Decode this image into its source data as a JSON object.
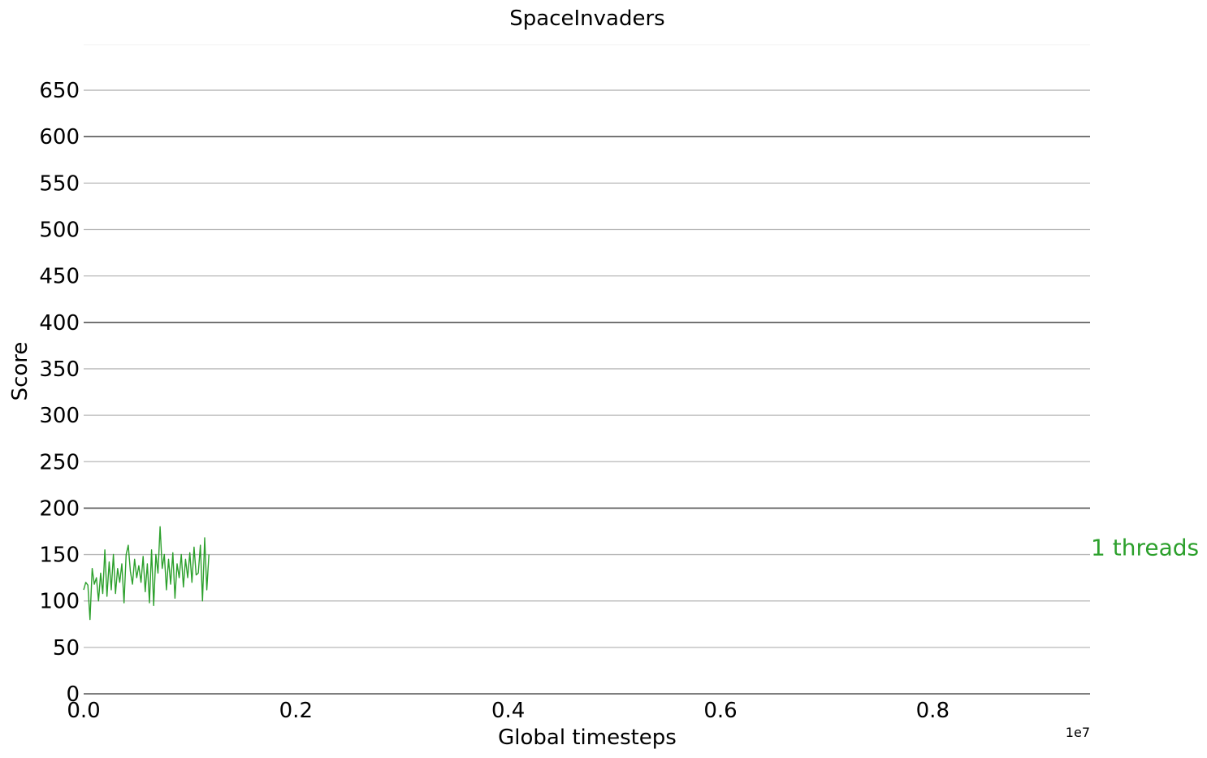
{
  "chart_data": {
    "type": "line",
    "title": "SpaceInvaders",
    "xlabel": "Global timesteps",
    "ylabel": "Score",
    "x_offset_label": "1e7",
    "xlim": [
      0,
      0.95
    ],
    "ylim": [
      0,
      700
    ],
    "xticks": [
      0.0,
      0.2,
      0.4,
      0.6,
      0.8
    ],
    "xtick_labels": [
      "0.0",
      "0.2",
      "0.4",
      "0.6",
      "0.8"
    ],
    "yticks": [
      0,
      50,
      100,
      150,
      200,
      250,
      300,
      350,
      400,
      450,
      500,
      550,
      600,
      650
    ],
    "ytick_labels": [
      "0",
      "50",
      "100",
      "150",
      "200",
      "250",
      "300",
      "350",
      "400",
      "450",
      "500",
      "550",
      "600",
      "650"
    ],
    "major_gridlines": [
      0,
      200,
      400,
      600
    ],
    "grid": true,
    "series": [
      {
        "name": "1 threads",
        "color": "#2ca02c",
        "label_y": 158,
        "x": [
          0.0,
          0.002,
          0.004,
          0.006,
          0.008,
          0.01,
          0.012,
          0.014,
          0.016,
          0.018,
          0.02,
          0.022,
          0.024,
          0.026,
          0.028,
          0.03,
          0.032,
          0.034,
          0.036,
          0.038,
          0.04,
          0.042,
          0.044,
          0.046,
          0.048,
          0.05,
          0.052,
          0.054,
          0.056,
          0.058,
          0.06,
          0.062,
          0.064,
          0.066,
          0.068,
          0.07,
          0.072,
          0.074,
          0.076,
          0.078,
          0.08,
          0.082,
          0.084,
          0.086,
          0.088,
          0.09,
          0.092,
          0.094,
          0.096,
          0.098,
          0.1,
          0.102,
          0.104,
          0.106,
          0.108,
          0.11,
          0.112,
          0.114,
          0.116,
          0.118
        ],
        "y": [
          112,
          120,
          117,
          80,
          135,
          118,
          125,
          100,
          130,
          108,
          155,
          105,
          142,
          112,
          150,
          108,
          135,
          120,
          140,
          98,
          150,
          160,
          132,
          118,
          145,
          125,
          138,
          120,
          148,
          110,
          140,
          98,
          155,
          95,
          150,
          130,
          180,
          135,
          150,
          112,
          145,
          118,
          152,
          103,
          140,
          125,
          150,
          115,
          145,
          125,
          152,
          120,
          158,
          128,
          130,
          160,
          100,
          168,
          112,
          150
        ]
      }
    ]
  }
}
